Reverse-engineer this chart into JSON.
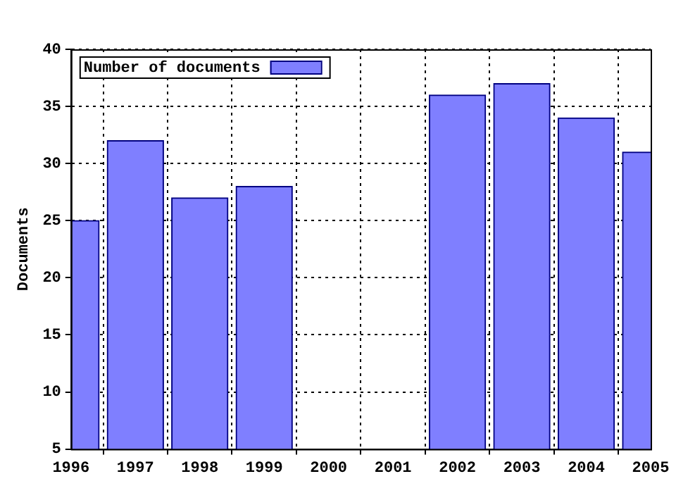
{
  "chart_data": {
    "type": "bar",
    "ylabel": "Documents",
    "x": [
      1996,
      1997,
      1998,
      1999,
      2000,
      2001,
      2002,
      2003,
      2004,
      2005
    ],
    "series": [
      {
        "name": "Number of documents",
        "color": "#7f7fff",
        "values": [
          25,
          32,
          27,
          28,
          null,
          null,
          36,
          37,
          34,
          31
        ]
      }
    ],
    "xlim": [
      1996,
      2005
    ],
    "xticks": [
      1996,
      1997,
      1998,
      1999,
      2000,
      2001,
      2002,
      2003,
      2004,
      2005
    ],
    "ylim": [
      5,
      40
    ],
    "yticks": [
      5,
      10,
      15,
      20,
      25,
      30,
      35,
      40
    ],
    "grid": true,
    "legend": "top left"
  }
}
